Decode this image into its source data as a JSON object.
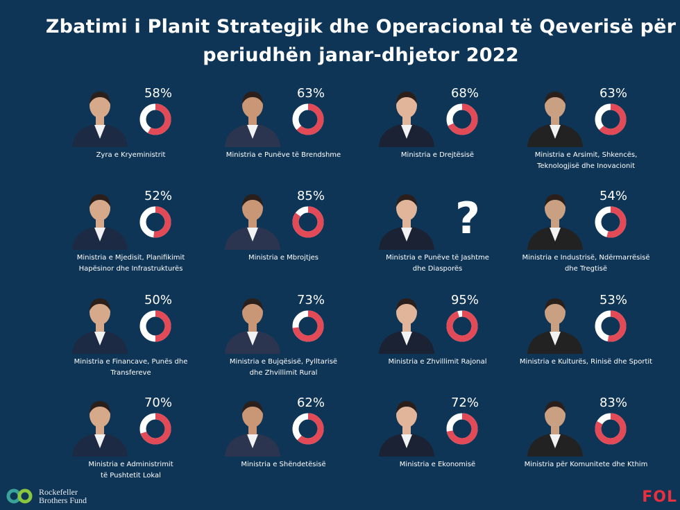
{
  "title": {
    "line1": "Zbatimi i Planit Strategjik dhe Operacional të Qeverisë për",
    "line2": "periudhën janar-dhjetor 2022"
  },
  "colors": {
    "background": "#0f3556",
    "ring_fill": "#e34a57",
    "ring_empty": "#ffffff",
    "text": "#ffffff"
  },
  "chart_data": {
    "type": "pie",
    "title": "Zbatimi i Planit Strategjik dhe Operacional të Qeverisë për periudhën janar-dhjetor 2022",
    "categories": [
      "Zyra e Kryeministrit",
      "Ministria e Punëve të Brendshme",
      "Ministria e Drejtësisë",
      "Ministria e Arsimit, Shkencës, Teknologjisë dhe Inovacionit",
      "Ministria e Mjedisit, Planifikimit Hapësinor dhe Infrastrukturës",
      "Ministria e Mbrojtjes",
      "Ministria e Punëve të Jashtme dhe Diasporës",
      "Ministria e Industrisë, Ndërmarrësisë dhe Tregtisë",
      "Ministria e Financave, Punës dhe Transfereve",
      "Ministria e Bujqësisë, Pylltarisë dhe Zhvillimit Rural",
      "Ministria e Zhvillimit Rajonal",
      "Ministria e Kulturës, Rinisë dhe Sportit",
      "Ministria e Administrimit të Pushtetit Lokal",
      "Ministria e Shëndetësisë",
      "Ministria e Ekonomisë",
      "Ministria për Komunitete dhe Kthim"
    ],
    "values": [
      58,
      63,
      68,
      63,
      52,
      85,
      null,
      54,
      50,
      73,
      95,
      53,
      70,
      62,
      72,
      83
    ],
    "unit": "%"
  },
  "ministries": [
    {
      "label_lines": [
        "Zyra e Kryeministrit"
      ],
      "value": 58,
      "pct_text": "58%",
      "unknown": false
    },
    {
      "label_lines": [
        "Ministria e Punëve të Brendshme"
      ],
      "value": 63,
      "pct_text": "63%",
      "unknown": false
    },
    {
      "label_lines": [
        "Ministria e Drejtësisë"
      ],
      "value": 68,
      "pct_text": "68%",
      "unknown": false
    },
    {
      "label_lines": [
        "Ministria e Arsimit, Shkencës,",
        "Teknologjisë dhe Inovacionit"
      ],
      "value": 63,
      "pct_text": "63%",
      "unknown": false
    },
    {
      "label_lines": [
        "Ministria e Mjedisit, Planifikimit",
        "Hapësinor dhe Infrastrukturës"
      ],
      "value": 52,
      "pct_text": "52%",
      "unknown": false
    },
    {
      "label_lines": [
        "Ministria e Mbrojtjes"
      ],
      "value": 85,
      "pct_text": "85%",
      "unknown": false
    },
    {
      "label_lines": [
        "Ministria e Punëve të Jashtme",
        "dhe Diasporës"
      ],
      "value": null,
      "pct_text": "?",
      "unknown": true
    },
    {
      "label_lines": [
        "Ministria e Industrisë, Ndërmarrësisë",
        "dhe Tregtisë"
      ],
      "value": 54,
      "pct_text": "54%",
      "unknown": false
    },
    {
      "label_lines": [
        "Ministria e Financave, Punës dhe Transfereve"
      ],
      "value": 50,
      "pct_text": "50%",
      "unknown": false
    },
    {
      "label_lines": [
        "Ministria e Bujqësisë, Pylltarisë",
        "dhe Zhvillimit Rural"
      ],
      "value": 73,
      "pct_text": "73%",
      "unknown": false
    },
    {
      "label_lines": [
        "Ministria e Zhvillimit Rajonal"
      ],
      "value": 95,
      "pct_text": "95%",
      "unknown": false
    },
    {
      "label_lines": [
        "Ministria e Kulturës, Rinisë dhe Sportit"
      ],
      "value": 53,
      "pct_text": "53%",
      "unknown": false
    },
    {
      "label_lines": [
        "Ministria e Administrimit",
        "të Pushtetit Lokal"
      ],
      "value": 70,
      "pct_text": "70%",
      "unknown": false
    },
    {
      "label_lines": [
        "Ministria e Shëndetësisë"
      ],
      "value": 62,
      "pct_text": "62%",
      "unknown": false
    },
    {
      "label_lines": [
        "Ministria  e Ekonomisë"
      ],
      "value": 72,
      "pct_text": "72%",
      "unknown": false
    },
    {
      "label_lines": [
        "Ministria  për Komunitete dhe Kthim"
      ],
      "value": 83,
      "pct_text": "83%",
      "unknown": false
    }
  ],
  "footer": {
    "left_logo_line1": "Rockefeller",
    "left_logo_line2": "Brothers Fund",
    "right_logo": "FOL",
    "left_logo_icon": "interlocking-rings-icon"
  }
}
